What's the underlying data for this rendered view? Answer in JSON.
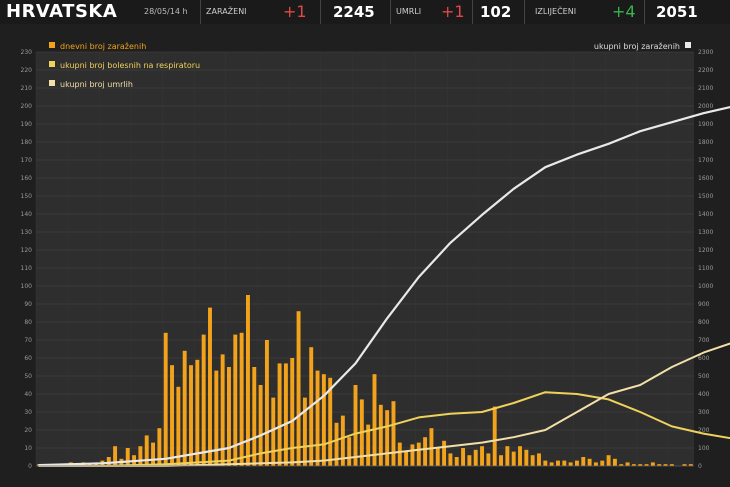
{
  "header": {
    "title": "HRVATSKA",
    "date": "28/05/14 h",
    "infected_label": "ZARAŽENI",
    "infected_delta": "+1",
    "infected_total": "2245",
    "dead_label": "UMRLI",
    "dead_delta": "+1",
    "dead_total": "102",
    "recovered_label": "IZLIJEČENI",
    "recovered_delta": "+4",
    "recovered_total": "2051"
  },
  "colors": {
    "bars": "#f2a21b",
    "hospitalized_line": "#f0d15a",
    "deaths_line": "#f3dfa8",
    "total_line": "#e9e9e9",
    "delta_red": "#e04848",
    "delta_green": "#39b54a"
  },
  "chart_data": {
    "type": "bar",
    "title": "",
    "legend": [
      {
        "name": "dnevni broj zaraženih",
        "color": "#f2a21b",
        "position": "top-left"
      },
      {
        "name": "ukupni broj bolesnih na respiratoru",
        "color": "#f0d15a",
        "position": "top-left"
      },
      {
        "name": "ukupni broj umrlih",
        "color": "#f3dfa8",
        "position": "top-left"
      },
      {
        "name": "ukupni broj zaraženih",
        "color": "#e9e9e9",
        "position": "top-right"
      }
    ],
    "y_left": {
      "min": 0,
      "max": 230,
      "ticks": [
        0,
        10,
        20,
        30,
        40,
        50,
        60,
        70,
        80,
        90,
        100,
        110,
        120,
        130,
        140,
        150,
        160,
        170,
        180,
        190,
        200,
        210,
        220,
        230
      ]
    },
    "y_right": {
      "min": 0,
      "max": 2300,
      "ticks": [
        0,
        100,
        200,
        300,
        400,
        500,
        600,
        700,
        800,
        900,
        1000,
        1100,
        1200,
        1300,
        1400,
        1500,
        1600,
        1700,
        1800,
        1900,
        2000,
        2100,
        2200,
        2300
      ]
    },
    "grid": true,
    "series": [
      {
        "name": "dnevni broj zaraženih",
        "type": "bar",
        "axis": "left",
        "values": [
          1,
          0,
          0,
          1,
          0,
          2,
          1,
          2,
          1,
          2,
          3,
          5,
          11,
          4,
          10,
          6,
          11,
          17,
          13,
          21,
          74,
          56,
          44,
          64,
          56,
          59,
          73,
          88,
          53,
          62,
          55,
          73,
          74,
          95,
          55,
          45,
          70,
          38,
          57,
          57,
          60,
          86,
          38,
          66,
          53,
          51,
          49,
          24,
          28,
          16,
          45,
          37,
          23,
          51,
          34,
          31,
          36,
          13,
          8,
          12,
          13,
          16,
          21,
          10,
          14,
          7,
          5,
          10,
          6,
          9,
          11,
          7,
          33,
          6,
          11,
          8,
          11,
          9,
          6,
          7,
          3,
          2,
          3,
          3,
          2,
          3,
          5,
          4,
          2,
          3,
          6,
          4,
          1,
          2,
          1,
          1,
          1,
          2,
          1,
          1,
          1,
          0,
          1,
          1
        ]
      },
      {
        "name": "ukupni broj zaraženih",
        "type": "line",
        "axis": "right",
        "points": [
          [
            0,
            5
          ],
          [
            10,
            15
          ],
          [
            20,
            40
          ],
          [
            30,
            100
          ],
          [
            35,
            170
          ],
          [
            40,
            250
          ],
          [
            45,
            390
          ],
          [
            50,
            570
          ],
          [
            55,
            820
          ],
          [
            60,
            1050
          ],
          [
            65,
            1240
          ],
          [
            70,
            1395
          ],
          [
            75,
            1540
          ],
          [
            80,
            1660
          ],
          [
            85,
            1730
          ],
          [
            90,
            1790
          ],
          [
            95,
            1860
          ],
          [
            100,
            1910
          ],
          [
            105,
            1960
          ],
          [
            110,
            2000
          ],
          [
            115,
            2030
          ],
          [
            120,
            2060
          ],
          [
            125,
            2080
          ],
          [
            130,
            2090
          ],
          [
            133,
            2105
          ],
          [
            135,
            2145
          ],
          [
            140,
            2175
          ],
          [
            145,
            2205
          ],
          [
            150,
            2210
          ],
          [
            155,
            2215
          ],
          [
            160,
            2220
          ],
          [
            165,
            2225
          ]
        ]
      },
      {
        "name": "ukupni broj bolesnih na respiratoru",
        "type": "line",
        "axis": "left",
        "points": [
          [
            0,
            0
          ],
          [
            10,
            0
          ],
          [
            20,
            1
          ],
          [
            30,
            3
          ],
          [
            35,
            7
          ],
          [
            40,
            10
          ],
          [
            45,
            12
          ],
          [
            50,
            18
          ],
          [
            55,
            22
          ],
          [
            60,
            27
          ],
          [
            65,
            29
          ],
          [
            70,
            30
          ],
          [
            75,
            35
          ],
          [
            80,
            41
          ],
          [
            85,
            40
          ],
          [
            90,
            37
          ],
          [
            95,
            30
          ],
          [
            100,
            22
          ],
          [
            105,
            18
          ],
          [
            110,
            15
          ],
          [
            115,
            13
          ],
          [
            120,
            12
          ],
          [
            125,
            10
          ],
          [
            130,
            8
          ],
          [
            135,
            7
          ],
          [
            140,
            6
          ],
          [
            145,
            5
          ],
          [
            150,
            4
          ],
          [
            155,
            3
          ],
          [
            160,
            3
          ],
          [
            165,
            2
          ]
        ]
      },
      {
        "name": "ukupni broj umrlih",
        "type": "line",
        "axis": "left",
        "points": [
          [
            0,
            0
          ],
          [
            20,
            0
          ],
          [
            30,
            1
          ],
          [
            40,
            2
          ],
          [
            45,
            3
          ],
          [
            50,
            5
          ],
          [
            55,
            7
          ],
          [
            60,
            9
          ],
          [
            65,
            11
          ],
          [
            70,
            13
          ],
          [
            75,
            16
          ],
          [
            80,
            20
          ],
          [
            85,
            30
          ],
          [
            90,
            40
          ],
          [
            95,
            45
          ],
          [
            100,
            55
          ],
          [
            105,
            63
          ],
          [
            110,
            69
          ],
          [
            115,
            71
          ],
          [
            120,
            76
          ],
          [
            125,
            81
          ],
          [
            130,
            83
          ],
          [
            135,
            87
          ],
          [
            140,
            89
          ],
          [
            145,
            92
          ],
          [
            150,
            95
          ],
          [
            155,
            96
          ],
          [
            160,
            97
          ],
          [
            165,
            99
          ]
        ]
      }
    ]
  }
}
